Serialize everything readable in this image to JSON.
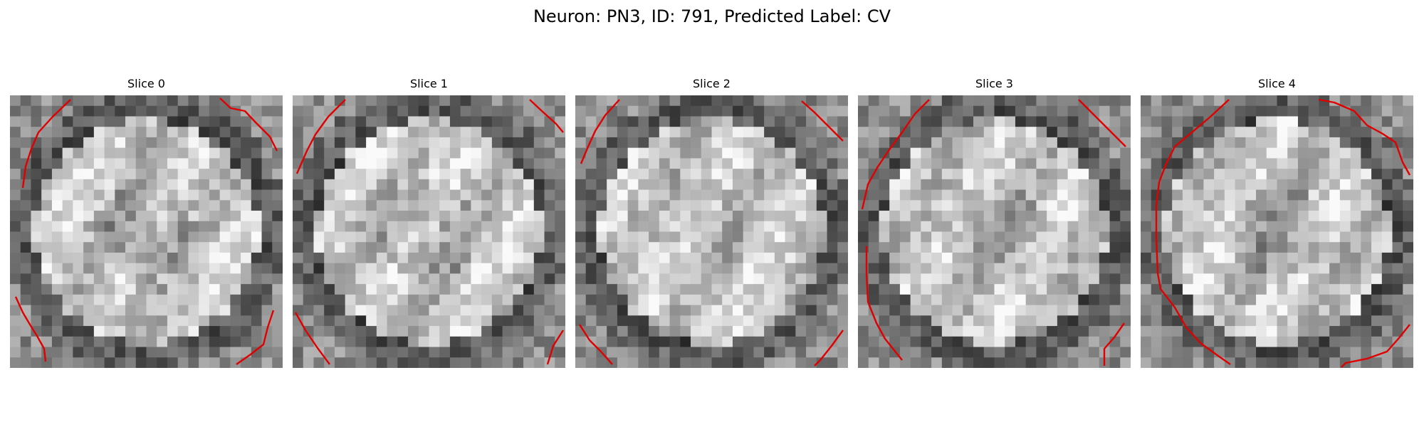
{
  "figure": {
    "title": "Neuron: PN3, ID: 791, Predicted Label: CV"
  },
  "colors": {
    "contour": "#e00000",
    "background": "#ffffff"
  },
  "panels": [
    {
      "title": "Slice 0"
    },
    {
      "title": "Slice 1"
    },
    {
      "title": "Slice 2"
    },
    {
      "title": "Slice 3"
    },
    {
      "title": "Slice 4"
    }
  ]
}
